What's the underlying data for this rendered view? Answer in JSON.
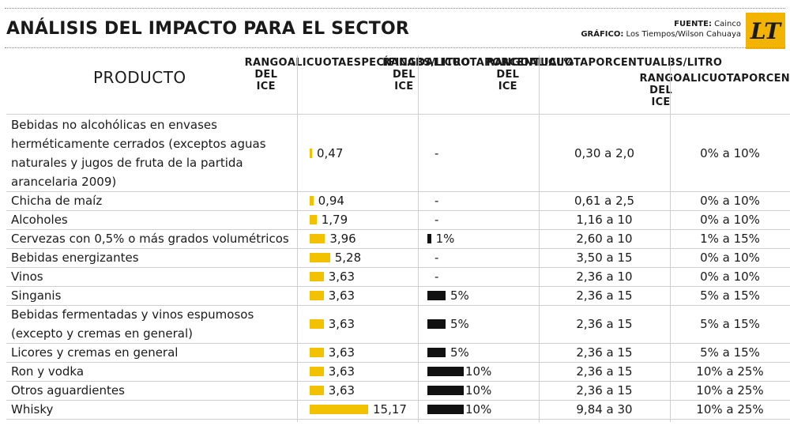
{
  "header": {
    "title": "ANÁLISIS DEL IMPACTO PARA EL SECTOR",
    "fuente_label": "FUENTE:",
    "fuente_value": "Cainco",
    "grafico_label": "GRÁFICO:",
    "grafico_value": "Los Tiempos/Wilson Cahuaya",
    "logo_text": "LT"
  },
  "colors": {
    "accent_bar": "#f2c100",
    "dark_bar": "#111111"
  },
  "chart_data": {
    "type": "table",
    "title": "ANÁLISIS DEL IMPACTO PARA EL SECTOR",
    "columns": [
      "PRODUCTO",
      "RANGO DEL ICE ALICUOTA ESPECÍFICA BS/LITRO",
      "RANGO DEL ICE ALICUOTA PORCENTUAL %",
      "RANGO DEL ICE ALICUOTA PORCENTUAL BS/LITRO",
      "RANGO DEL ICE ALICUOTA PORCENTUAL"
    ],
    "column_lines": [
      [
        "PRODUCTO"
      ],
      [
        "RANGO DEL ICE",
        "ALICUOTA",
        "ESPECÍFICA",
        "BS/LITRO"
      ],
      [
        "RANGO DEL ICE",
        "ALICUOTA",
        "PORCENTUAL",
        "%"
      ],
      [
        "RANGO DEL ICE",
        "ALICUOTA",
        "PORCENTUAL",
        "BS/LITRO"
      ],
      [
        "RANGO DEL ICE",
        "ALICUOTA",
        "PORCENTUAL"
      ]
    ],
    "rows": [
      {
        "product": "Bebidas no alcohólicas en envases herméticamente cerrados (exceptos aguas naturales y jugos de fruta de la partida arancelaria 2009)",
        "product_lines": [
          "Bebidas no alcohólicas en envases",
          "herméticamente cerrados (exceptos aguas",
          "naturales y jugos de fruta de la partida",
          "arancelaria 2009)"
        ],
        "especifica": 0.47,
        "especifica_label": "0,47",
        "porcentual": null,
        "porcentual_label": "-",
        "rango_bs": "0,30 a 2,0",
        "rango_pct": "0% a 10%"
      },
      {
        "product": "Chicha de maíz",
        "product_lines": [
          "Chicha de maíz"
        ],
        "especifica": 0.94,
        "especifica_label": "0,94",
        "porcentual": null,
        "porcentual_label": "-",
        "rango_bs": "0,61 a 2,5",
        "rango_pct": "0% a 10%"
      },
      {
        "product": "Alcoholes",
        "product_lines": [
          "Alcoholes"
        ],
        "especifica": 1.79,
        "especifica_label": "1,79",
        "porcentual": null,
        "porcentual_label": "-",
        "rango_bs": "1,16 a 10",
        "rango_pct": "0% a 10%"
      },
      {
        "product": "Cervezas con 0,5% o más grados volumétricos",
        "product_lines": [
          "Cervezas con 0,5% o más grados volumétricos"
        ],
        "especifica": 3.96,
        "especifica_label": "3,96",
        "porcentual": 1,
        "porcentual_label": "1%",
        "rango_bs": "2,60 a 10",
        "rango_pct": "1% a 15%"
      },
      {
        "product": "Bebidas energizantes",
        "product_lines": [
          "Bebidas energizantes"
        ],
        "especifica": 5.28,
        "especifica_label": "5,28",
        "porcentual": null,
        "porcentual_label": "-",
        "rango_bs": "3,50 a 15",
        "rango_pct": "0% a 10%"
      },
      {
        "product": "Vinos",
        "product_lines": [
          "Vinos"
        ],
        "especifica": 3.63,
        "especifica_label": "3,63",
        "porcentual": null,
        "porcentual_label": "-",
        "rango_bs": "2,36 a 10",
        "rango_pct": "0% a 10%"
      },
      {
        "product": "Singanis",
        "product_lines": [
          "Singanis"
        ],
        "especifica": 3.63,
        "especifica_label": "3,63",
        "porcentual": 5,
        "porcentual_label": "5%",
        "rango_bs": "2,36 a 15",
        "rango_pct": "5% a 15%"
      },
      {
        "product": "Bebidas fermentadas y vinos espumosos (excepto y cremas en general)",
        "product_lines": [
          "Bebidas fermentadas y vinos espumosos",
          "(excepto y cremas en general)"
        ],
        "especifica": 3.63,
        "especifica_label": "3,63",
        "porcentual": 5,
        "porcentual_label": "5%",
        "rango_bs": "2,36 a 15",
        "rango_pct": "5% a 15%"
      },
      {
        "product": "Licores y cremas en general",
        "product_lines": [
          "Licores y cremas en general"
        ],
        "especifica": 3.63,
        "especifica_label": "3,63",
        "porcentual": 5,
        "porcentual_label": "5%",
        "rango_bs": "2,36 a 15",
        "rango_pct": "5% a 15%"
      },
      {
        "product": "Ron y vodka",
        "product_lines": [
          "Ron y vodka"
        ],
        "especifica": 3.63,
        "especifica_label": "3,63",
        "porcentual": 10,
        "porcentual_label": "10%",
        "rango_bs": "2,36 a 15",
        "rango_pct": "10% a 25%"
      },
      {
        "product": "Otros aguardientes",
        "product_lines": [
          "Otros aguardientes"
        ],
        "especifica": 3.63,
        "especifica_label": "3,63",
        "porcentual": 10,
        "porcentual_label": "10%",
        "rango_bs": "2,36 a 15",
        "rango_pct": "10% a 25%"
      },
      {
        "product": "Whisky",
        "product_lines": [
          "Whisky"
        ],
        "especifica": 15.17,
        "especifica_label": "15,17",
        "porcentual": 10,
        "porcentual_label": "10%",
        "rango_bs": "9,84 a 30",
        "rango_pct": "10% a 25%"
      }
    ]
  }
}
